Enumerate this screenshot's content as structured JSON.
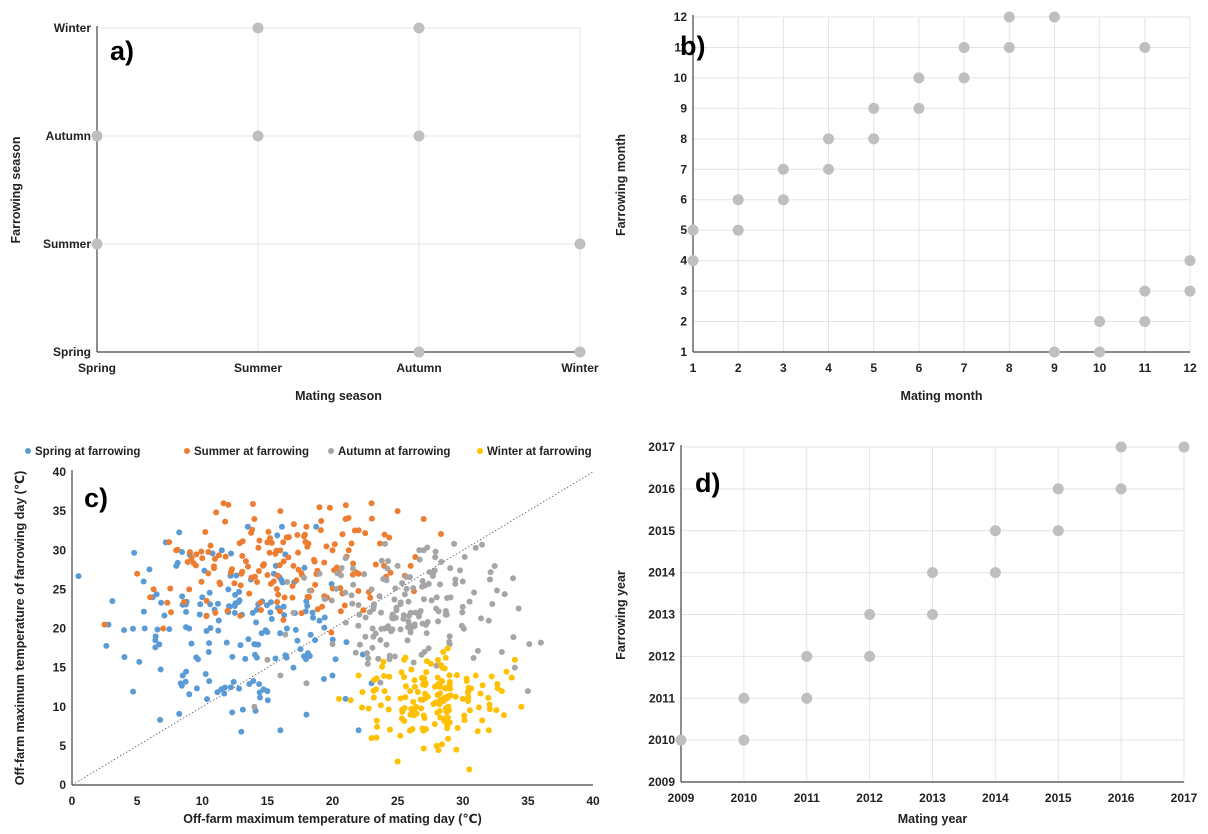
{
  "chart_data": [
    {
      "panel_label": "a)",
      "type": "scatter",
      "xlabel": "Mating season",
      "ylabel": "Farrowing season",
      "x_categories": [
        "Spring",
        "Summer",
        "Autumn",
        "Winter"
      ],
      "y_categories": [
        "Spring",
        "Summer",
        "Autumn",
        "Winter"
      ],
      "grid": true,
      "series": [
        {
          "color": "#bfbfbf",
          "points": [
            [
              "Spring",
              "Summer"
            ],
            [
              "Spring",
              "Autumn"
            ],
            [
              "Summer",
              "Autumn"
            ],
            [
              "Summer",
              "Winter"
            ],
            [
              "Autumn",
              "Autumn"
            ],
            [
              "Autumn",
              "Winter"
            ],
            [
              "Autumn",
              "Spring"
            ],
            [
              "Winter",
              "Summer"
            ],
            [
              "Winter",
              "Spring"
            ]
          ]
        }
      ]
    },
    {
      "panel_label": "b)",
      "type": "scatter",
      "xlabel": "Mating month",
      "ylabel": "Farrowing month",
      "xlim": [
        1,
        12
      ],
      "ylim": [
        1,
        12
      ],
      "xticks": [
        1,
        2,
        3,
        4,
        5,
        6,
        7,
        8,
        9,
        10,
        11,
        12
      ],
      "yticks": [
        1,
        2,
        3,
        4,
        5,
        6,
        7,
        8,
        9,
        10,
        11,
        12
      ],
      "grid": true,
      "series": [
        {
          "color": "#bfbfbf",
          "points": [
            [
              1,
              4
            ],
            [
              1,
              5
            ],
            [
              2,
              5
            ],
            [
              2,
              6
            ],
            [
              3,
              6
            ],
            [
              3,
              7
            ],
            [
              4,
              7
            ],
            [
              4,
              8
            ],
            [
              5,
              8
            ],
            [
              5,
              9
            ],
            [
              6,
              9
            ],
            [
              6,
              10
            ],
            [
              7,
              10
            ],
            [
              7,
              11
            ],
            [
              8,
              11
            ],
            [
              8,
              12
            ],
            [
              9,
              12
            ],
            [
              9,
              1
            ],
            [
              10,
              1
            ],
            [
              10,
              2
            ],
            [
              11,
              2
            ],
            [
              11,
              3
            ],
            [
              11,
              11
            ],
            [
              12,
              3
            ],
            [
              12,
              4
            ]
          ]
        }
      ]
    },
    {
      "panel_label": "c)",
      "type": "scatter",
      "xlabel": "Off-farm maximum temperature of mating day (℃)",
      "ylabel": "Off-farm maximum temperature of farrowing day (℃)",
      "xlim": [
        0,
        40
      ],
      "ylim": [
        0,
        40
      ],
      "xticks": [
        0,
        5,
        10,
        15,
        20,
        25,
        30,
        35,
        40
      ],
      "yticks": [
        0,
        5,
        10,
        15,
        20,
        25,
        30,
        35,
        40
      ],
      "grid": false,
      "legend_position": "top",
      "reference_line": "y = x (dotted)",
      "series": [
        {
          "name": "Spring at farrowing",
          "color": "#5b9bd5",
          "cluster": {
            "x_range": [
              0.5,
              24
            ],
            "y_range": [
              3,
              33
            ],
            "x_center": 13,
            "y_center": 20
          },
          "points": [
            [
              0.5,
              26.7
            ],
            [
              2.8,
              20.5
            ],
            [
              3.1,
              23.5
            ],
            [
              4,
              19.8
            ],
            [
              5.5,
              26
            ],
            [
              6.4,
              18.5
            ],
            [
              7.2,
              31
            ],
            [
              8,
              28
            ],
            [
              9,
              20
            ],
            [
              10,
              24
            ],
            [
              10.5,
              17
            ],
            [
              11.5,
              30
            ],
            [
              12,
              25
            ],
            [
              12.5,
              22
            ],
            [
              13.5,
              33
            ],
            [
              13,
              6.8
            ],
            [
              14,
              18
            ],
            [
              15,
              12
            ],
            [
              15.5,
              27
            ],
            [
              16,
              7
            ],
            [
              16.5,
              20
            ],
            [
              17,
              15
            ],
            [
              18,
              9
            ],
            [
              19,
              21
            ],
            [
              20,
              14
            ],
            [
              21,
              11
            ],
            [
              22,
              7
            ],
            [
              23,
              13
            ],
            [
              8.5,
              14
            ],
            [
              9,
              11.6
            ]
          ]
        },
        {
          "name": "Summer at farrowing",
          "color": "#ed7d31",
          "cluster": {
            "x_range": [
              2.5,
              30
            ],
            "y_range": [
              17,
              36
            ],
            "x_center": 17,
            "y_center": 28
          },
          "points": [
            [
              2.5,
              20.5
            ],
            [
              5,
              27
            ],
            [
              6,
              24
            ],
            [
              7,
              20
            ],
            [
              8,
              30
            ],
            [
              9,
              25
            ],
            [
              10,
              29
            ],
            [
              11,
              22
            ],
            [
              12,
              35.8
            ],
            [
              13,
              27
            ],
            [
              14,
              34
            ],
            [
              15,
              31
            ],
            [
              16,
              35
            ],
            [
              17,
              28
            ],
            [
              18,
              33
            ],
            [
              19,
              35.5
            ],
            [
              19.5,
              24
            ],
            [
              20,
              30
            ],
            [
              21,
              34
            ],
            [
              22,
              27
            ],
            [
              23,
              36
            ],
            [
              24,
              32
            ],
            [
              25,
              35
            ],
            [
              26,
              28
            ],
            [
              27,
              34
            ]
          ]
        },
        {
          "name": "Autumn at farrowing",
          "color": "#a5a5a5",
          "cluster": {
            "x_range": [
              14,
              36
            ],
            "y_range": [
              7,
              31
            ],
            "x_center": 26,
            "y_center": 22
          },
          "points": [
            [
              14,
              10
            ],
            [
              15,
              16
            ],
            [
              16,
              14
            ],
            [
              17,
              22
            ],
            [
              18,
              13
            ],
            [
              19,
              27
            ],
            [
              20,
              18
            ],
            [
              21,
              29
            ],
            [
              22,
              23
            ],
            [
              23,
              25
            ],
            [
              24,
              20
            ],
            [
              25,
              28
            ],
            [
              26,
              22
            ],
            [
              27,
              30
            ],
            [
              28,
              24
            ],
            [
              29,
              18
            ],
            [
              30,
              26
            ],
            [
              31,
              30.3
            ],
            [
              32,
              21
            ],
            [
              33,
              17
            ],
            [
              34,
              15
            ],
            [
              35,
              12
            ],
            [
              36,
              18.2
            ],
            [
              26,
              9
            ]
          ]
        },
        {
          "name": "Winter at farrowing",
          "color": "#ffc000",
          "cluster": {
            "x_range": [
              20,
              35
            ],
            "y_range": [
              2,
              18
            ],
            "x_center": 28,
            "y_center": 11
          },
          "points": [
            [
              20.5,
              11
            ],
            [
              22,
              14
            ],
            [
              23,
              6
            ],
            [
              24,
              12
            ],
            [
              25,
              3
            ],
            [
              25.5,
              16
            ],
            [
              26,
              9
            ],
            [
              27,
              13
            ],
            [
              28,
              5
            ],
            [
              28.5,
              17
            ],
            [
              29,
              8
            ],
            [
              30,
              11
            ],
            [
              30.5,
              2
            ],
            [
              31,
              14
            ],
            [
              32,
              7
            ],
            [
              33,
              12
            ],
            [
              34,
              16
            ],
            [
              34.5,
              10
            ]
          ]
        }
      ]
    },
    {
      "panel_label": "d)",
      "type": "scatter",
      "xlabel": "Mating year",
      "ylabel": "Farrowing year",
      "xlim": [
        2009,
        2017
      ],
      "ylim": [
        2009,
        2017
      ],
      "xticks": [
        2009,
        2010,
        2011,
        2012,
        2013,
        2014,
        2015,
        2016,
        2017
      ],
      "yticks": [
        2009,
        2010,
        2011,
        2012,
        2013,
        2014,
        2015,
        2016,
        2017
      ],
      "grid": true,
      "series": [
        {
          "color": "#bfbfbf",
          "points": [
            [
              2009,
              2010
            ],
            [
              2010,
              2010
            ],
            [
              2010,
              2011
            ],
            [
              2011,
              2011
            ],
            [
              2011,
              2012
            ],
            [
              2012,
              2012
            ],
            [
              2012,
              2013
            ],
            [
              2013,
              2013
            ],
            [
              2013,
              2014
            ],
            [
              2014,
              2014
            ],
            [
              2014,
              2015
            ],
            [
              2015,
              2015
            ],
            [
              2015,
              2016
            ],
            [
              2016,
              2016
            ],
            [
              2016,
              2017
            ],
            [
              2017,
              2017
            ]
          ]
        }
      ]
    }
  ]
}
